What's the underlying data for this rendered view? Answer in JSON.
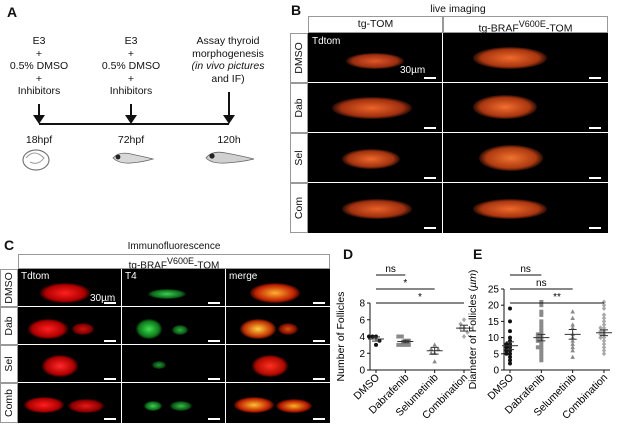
{
  "panel_labels": {
    "a": "A",
    "b": "B",
    "c": "C",
    "d": "D",
    "e": "E"
  },
  "panelA": {
    "col1": [
      "E3",
      "+",
      "0.5% DMSO",
      "+",
      "Inhibitors"
    ],
    "col2": [
      "E3",
      "+",
      "0.5% DMSO",
      "+",
      "Inhibitors"
    ],
    "col3": [
      "Assay thyroid",
      "morphogenesis",
      "(in vivo pictures",
      "and IF)"
    ],
    "times": [
      "18hpf",
      "72hpf",
      "120h"
    ]
  },
  "panelB": {
    "title": "live imaging",
    "col_tgtom": "tg-TOM",
    "col_braf_pre": "tg-BRAF",
    "col_braf_sup": "V600E",
    "col_braf_post": "-TOM",
    "rows": [
      "DMSO",
      "Dab",
      "Sel",
      "Com"
    ],
    "tile_label": "Tdtom",
    "scale": "30µm"
  },
  "panelC": {
    "title": "Immunofluorescence",
    "sub_pre": "tg-BRAF",
    "sub_sup": "V600E",
    "sub_post": "-TOM",
    "cols": [
      "Tdtom",
      "T4",
      "merge"
    ],
    "rows": [
      "DMSO",
      "Dab",
      "Sel",
      "Comb"
    ],
    "scale": "30µm"
  },
  "chart_data": [
    {
      "type": "scatter",
      "categories": [
        "DMSO",
        "Dabrafenib",
        "Selumetinib",
        "Combination"
      ],
      "ylabel": "Number of Follicles",
      "ylim": [
        0,
        8
      ],
      "yticks": [
        0,
        2,
        4,
        6,
        8
      ],
      "points": [
        [
          4,
          4,
          3,
          3.5,
          4
        ],
        [
          3,
          3.5,
          3,
          3,
          4,
          3.5,
          3,
          4
        ],
        [
          2,
          2,
          3,
          2.5,
          1,
          2.5
        ],
        [
          4,
          5,
          6,
          5,
          4.5,
          5.5
        ]
      ],
      "means": [
        3.7,
        3.4,
        2.3,
        5.0
      ],
      "errs": [
        0.25,
        0.15,
        0.4,
        0.35
      ],
      "significance": [
        {
          "from": 0,
          "to": 1,
          "label": "ns"
        },
        {
          "from": 0,
          "to": 2,
          "label": "*"
        },
        {
          "from": 0,
          "to": 3,
          "label": "*"
        }
      ]
    },
    {
      "type": "scatter",
      "categories": [
        "DMSO",
        "Dabrafenib",
        "Selumetinib",
        "Combination"
      ],
      "ylabel_pre": "Diameter of Follicles (",
      "ylabel_unit": "µm",
      "ylabel_post": ")",
      "ylim": [
        0,
        25
      ],
      "yticks": [
        0,
        5,
        10,
        15,
        20,
        25
      ],
      "points": [
        [
          2,
          3,
          4,
          5,
          5,
          6,
          6,
          7,
          7,
          8,
          8,
          9,
          10,
          12,
          15,
          19
        ],
        [
          3,
          4,
          5,
          6,
          7,
          7,
          8,
          9,
          9,
          10,
          10,
          11,
          11,
          12,
          13,
          14,
          15,
          17,
          18,
          20,
          21
        ],
        [
          4,
          6,
          7,
          8,
          9,
          10,
          11,
          13,
          14,
          16,
          18
        ],
        [
          5,
          6,
          7,
          8,
          9,
          10,
          10,
          11,
          11,
          12,
          12,
          13,
          13,
          14,
          15,
          16,
          17,
          19,
          20,
          21
        ]
      ],
      "means": [
        7.5,
        10,
        11,
        11.5
      ],
      "errs": [
        1.2,
        1,
        1.5,
        0.9
      ],
      "colors": [
        "#111111",
        "#8a8a8a",
        "#8a8a8a",
        "#aaaaaa"
      ],
      "significance": [
        {
          "from": 0,
          "to": 1,
          "label": "ns"
        },
        {
          "from": 0,
          "to": 2,
          "label": "ns"
        },
        {
          "from": 0,
          "to": 3,
          "label": "**"
        }
      ]
    }
  ]
}
